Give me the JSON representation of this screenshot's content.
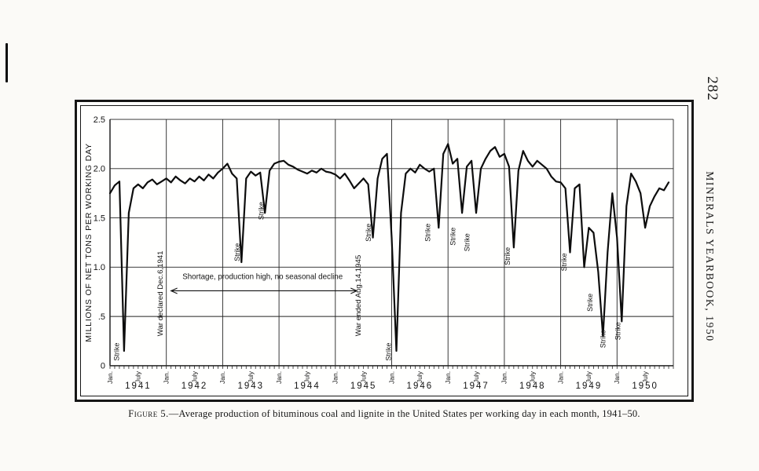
{
  "page": {
    "number": "282",
    "running_header": "MINERALS YEARBOOK, 1950",
    "caption": {
      "label": "Figure 5.",
      "text": "—Average production of bituminous coal and lignite in the United States per working day in each month, 1941–50."
    }
  },
  "chart_data": {
    "type": "line",
    "title": "Average production of bituminous coal and lignite in the United States per working day in each month, 1941-50",
    "ylabel": "MILLIONS OF NET TONS PER WORKING DAY",
    "ylim": [
      0,
      2.5
    ],
    "yticks": [
      0,
      0.5,
      1.0,
      1.5,
      2.0,
      2.5
    ],
    "ytick_labels": [
      "0",
      ".5",
      "1.0",
      "1.5",
      "2.0",
      "2.5"
    ],
    "x_month_labels": [
      "Jan.",
      "July"
    ],
    "years": [
      "1941",
      "1942",
      "1943",
      "1944",
      "1945",
      "1946",
      "1947",
      "1948",
      "1949",
      "1950"
    ],
    "grid": true,
    "legend": "none",
    "series": [
      {
        "name": "Bituminous coal and lignite production per working day",
        "unit": "million net tons per working day",
        "start_month": "1941-01",
        "monthly_values": [
          1.75,
          1.83,
          1.87,
          0.15,
          1.55,
          1.8,
          1.84,
          1.8,
          1.86,
          1.89,
          1.84,
          1.87,
          1.9,
          1.86,
          1.92,
          1.88,
          1.85,
          1.9,
          1.87,
          1.92,
          1.88,
          1.94,
          1.9,
          1.96,
          2.0,
          2.05,
          1.95,
          1.9,
          1.05,
          1.9,
          1.97,
          1.93,
          1.96,
          1.55,
          1.98,
          2.05,
          2.07,
          2.08,
          2.04,
          2.02,
          1.99,
          1.97,
          1.95,
          1.98,
          1.96,
          2.0,
          1.97,
          1.96,
          1.94,
          1.9,
          1.95,
          1.88,
          1.8,
          1.85,
          1.9,
          1.84,
          1.3,
          1.9,
          2.1,
          2.15,
          1.3,
          0.15,
          1.55,
          1.95,
          2.0,
          1.96,
          2.04,
          2.0,
          1.97,
          2.0,
          1.4,
          2.15,
          2.25,
          2.05,
          2.1,
          1.55,
          2.02,
          2.08,
          1.55,
          2.0,
          2.1,
          2.18,
          2.22,
          2.12,
          2.15,
          2.02,
          1.2,
          1.98,
          2.18,
          2.08,
          2.02,
          2.08,
          2.04,
          2.0,
          1.92,
          1.87,
          1.86,
          1.8,
          1.15,
          1.8,
          1.84,
          1.0,
          1.4,
          1.35,
          0.95,
          0.3,
          1.15,
          1.75,
          1.3,
          0.45,
          1.62,
          1.95,
          1.87,
          1.75,
          1.4,
          1.62,
          1.72,
          1.8,
          1.78,
          1.86
        ]
      }
    ],
    "annotations": {
      "strikes": [
        {
          "text": "Strike",
          "month_index": 1.9,
          "value": 0.05
        },
        {
          "text": "Strike",
          "month_index": 27.6,
          "value": 1.06
        },
        {
          "text": "Strike",
          "month_index": 32.7,
          "value": 1.48
        },
        {
          "text": "Strike",
          "month_index": 55.6,
          "value": 1.26
        },
        {
          "text": "Strike",
          "month_index": 59.8,
          "value": 0.05
        },
        {
          "text": "Strike",
          "month_index": 68.2,
          "value": 1.26
        },
        {
          "text": "Strike",
          "month_index": 73.6,
          "value": 1.22
        },
        {
          "text": "Strike",
          "month_index": 76.6,
          "value": 1.16
        },
        {
          "text": "Strike",
          "month_index": 85.2,
          "value": 1.02
        },
        {
          "text": "Strike",
          "month_index": 97.2,
          "value": 0.96
        },
        {
          "text": "Strike",
          "month_index": 102.8,
          "value": 0.55
        },
        {
          "text": "Strike",
          "month_index": 105.5,
          "value": 0.18
        },
        {
          "text": "Strike",
          "month_index": 108.7,
          "value": 0.26
        }
      ],
      "events": [
        {
          "text": "War declared Dec.6,1941",
          "month_index": 11.2,
          "value": 0.3
        },
        {
          "text": "War ended Aug.14,1945",
          "month_index": 53.4,
          "value": 0.3
        }
      ],
      "shortage_note": {
        "text": "Shortage, production high, no seasonal decline",
        "center_month": 32.5,
        "text_value": 0.88,
        "arrow_from_month": 13.0,
        "arrow_to_month": 52.6,
        "arrow_value": 0.76
      }
    }
  }
}
